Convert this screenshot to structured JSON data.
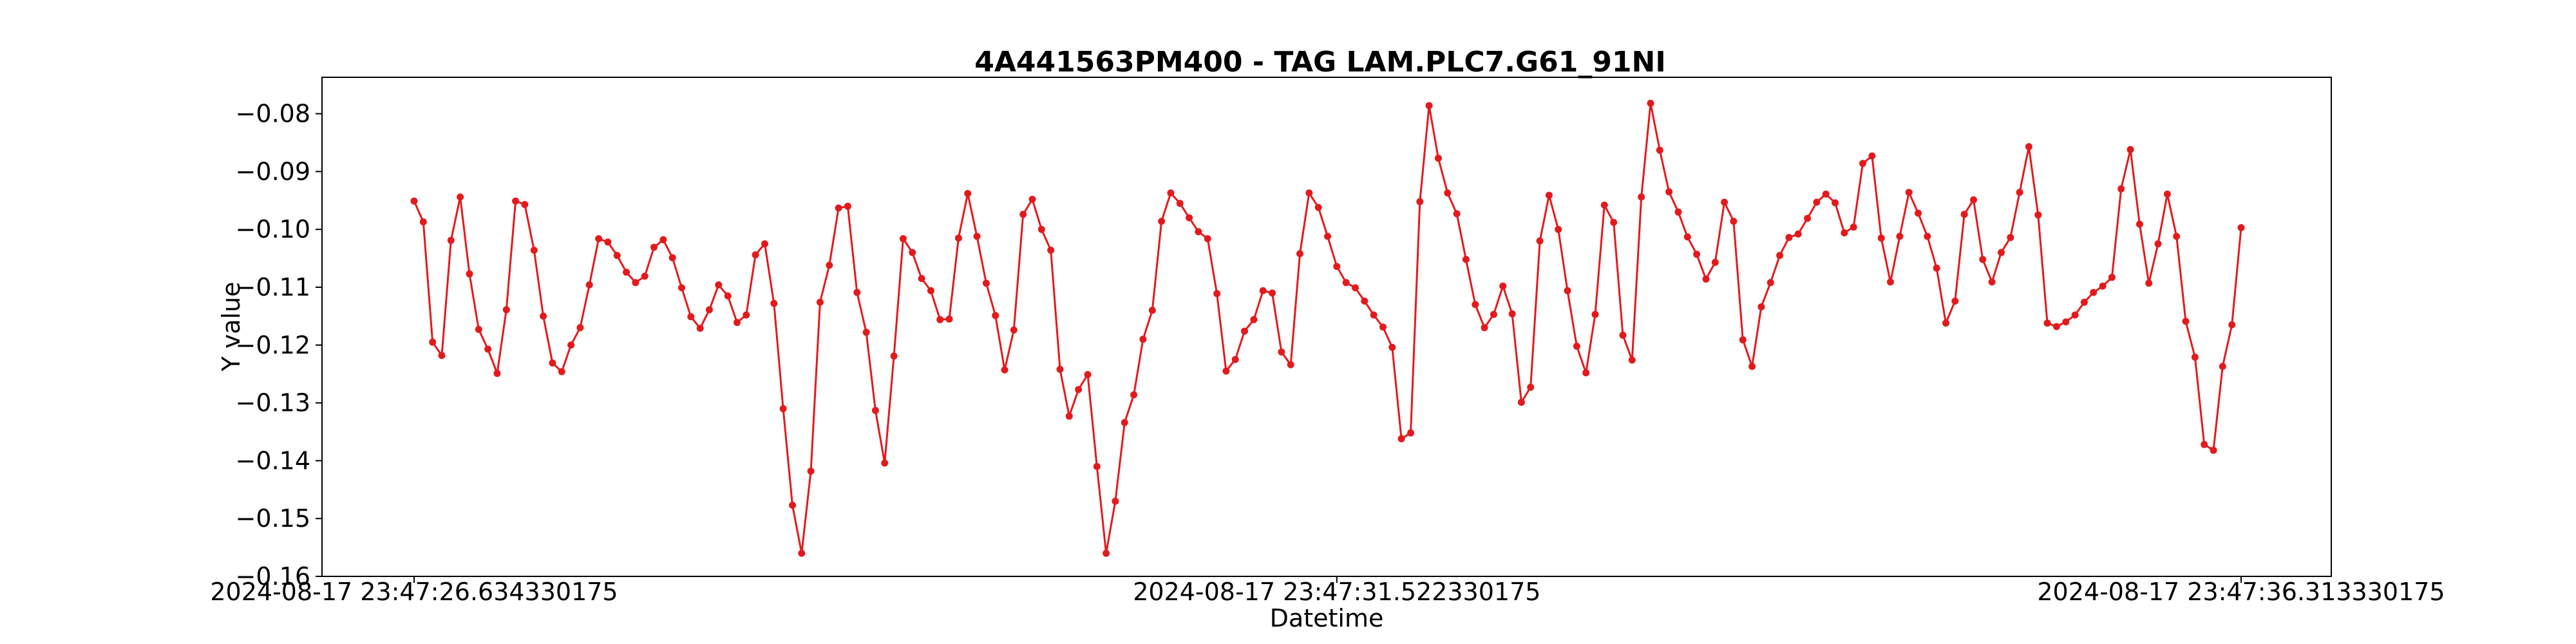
{
  "chart_data": {
    "type": "line",
    "title": "4A441563PM400 - TAG LAM.PLC7.G61_91NI",
    "xlabel": "Datetime",
    "ylabel": "Y value",
    "ylim": [
      -0.16,
      -0.0737
    ],
    "y_ticks": [
      -0.16,
      -0.15,
      -0.14,
      -0.13,
      -0.12,
      -0.11,
      -0.1,
      -0.09,
      -0.08
    ],
    "y_tick_labels": [
      "−0.16",
      "−0.15",
      "−0.14",
      "−0.13",
      "−0.12",
      "−0.11",
      "−0.10",
      "−0.09",
      "−0.08"
    ],
    "x_tick_labels": [
      "2024-08-17 23:47:26.634330175",
      "2024-08-17 23:47:31.522330175",
      "2024-08-17 23:47:36.313330175"
    ],
    "x_tick_index": [
      0,
      100,
      198
    ],
    "grid": false,
    "colors": {
      "series": "#e31a1c",
      "axis": "#000000",
      "background": "#ffffff"
    },
    "series": [
      {
        "values": [
          -0.0951,
          -0.0987,
          -0.1195,
          -0.1218,
          -0.1019,
          -0.0944,
          -0.1077,
          -0.1173,
          -0.1207,
          -0.1249,
          -0.1139,
          -0.0951,
          -0.0957,
          -0.1036,
          -0.115,
          -0.1231,
          -0.1246,
          -0.12,
          -0.117,
          -0.1096,
          -0.1016,
          -0.1022,
          -0.1045,
          -0.1074,
          -0.1092,
          -0.1081,
          -0.1031,
          -0.1018,
          -0.1049,
          -0.1101,
          -0.1151,
          -0.1171,
          -0.1139,
          -0.1096,
          -0.1115,
          -0.1161,
          -0.1148,
          -0.1044,
          -0.1025,
          -0.1128,
          -0.131,
          -0.1477,
          -0.156,
          -0.1418,
          -0.1126,
          -0.1062,
          -0.0963,
          -0.096,
          -0.1109,
          -0.1178,
          -0.1313,
          -0.1404,
          -0.1219,
          -0.1016,
          -0.104,
          -0.1085,
          -0.1106,
          -0.1156,
          -0.1155,
          -0.1015,
          -0.0938,
          -0.1012,
          -0.1093,
          -0.1149,
          -0.1243,
          -0.1174,
          -0.0974,
          -0.0948,
          -0.1,
          -0.1036,
          -0.1242,
          -0.1323,
          -0.1277,
          -0.1251,
          -0.141,
          -0.156,
          -0.147,
          -0.1334,
          -0.1286,
          -0.119,
          -0.114,
          -0.0986,
          -0.0937,
          -0.0955,
          -0.098,
          -0.1004,
          -0.1016,
          -0.1111,
          -0.1245,
          -0.1225,
          -0.1176,
          -0.1156,
          -0.1106,
          -0.111,
          -0.1212,
          -0.1234,
          -0.1042,
          -0.0937,
          -0.0962,
          -0.1012,
          -0.1064,
          -0.1092,
          -0.1101,
          -0.1124,
          -0.1148,
          -0.1169,
          -0.1204,
          -0.1362,
          -0.1352,
          -0.0952,
          -0.0786,
          -0.0877,
          -0.0937,
          -0.0973,
          -0.1052,
          -0.113,
          -0.117,
          -0.1147,
          -0.1098,
          -0.1146,
          -0.1299,
          -0.1273,
          -0.102,
          -0.0941,
          -0.1,
          -0.1106,
          -0.1202,
          -0.1248,
          -0.1147,
          -0.0958,
          -0.0988,
          -0.1183,
          -0.1226,
          -0.0944,
          -0.0782,
          -0.0863,
          -0.0935,
          -0.097,
          -0.1013,
          -0.1043,
          -0.1086,
          -0.1057,
          -0.0953,
          -0.0986,
          -0.1191,
          -0.1237,
          -0.1134,
          -0.1092,
          -0.1045,
          -0.1014,
          -0.1008,
          -0.0981,
          -0.0953,
          -0.0939,
          -0.0954,
          -0.1006,
          -0.0996,
          -0.0886,
          -0.0873,
          -0.1015,
          -0.1091,
          -0.1012,
          -0.0936,
          -0.0972,
          -0.1012,
          -0.1067,
          -0.1162,
          -0.1124,
          -0.0974,
          -0.0949,
          -0.1052,
          -0.1091,
          -0.104,
          -0.1014,
          -0.0936,
          -0.0857,
          -0.0975,
          -0.1162,
          -0.1168,
          -0.116,
          -0.1148,
          -0.1126,
          -0.1109,
          -0.1098,
          -0.1083,
          -0.093,
          -0.0862,
          -0.0991,
          -0.1093,
          -0.1025,
          -0.0939,
          -0.1012,
          -0.1159,
          -0.1221,
          -0.1372,
          -0.1382,
          -0.1237,
          -0.1165,
          -0.0997
        ]
      }
    ]
  }
}
